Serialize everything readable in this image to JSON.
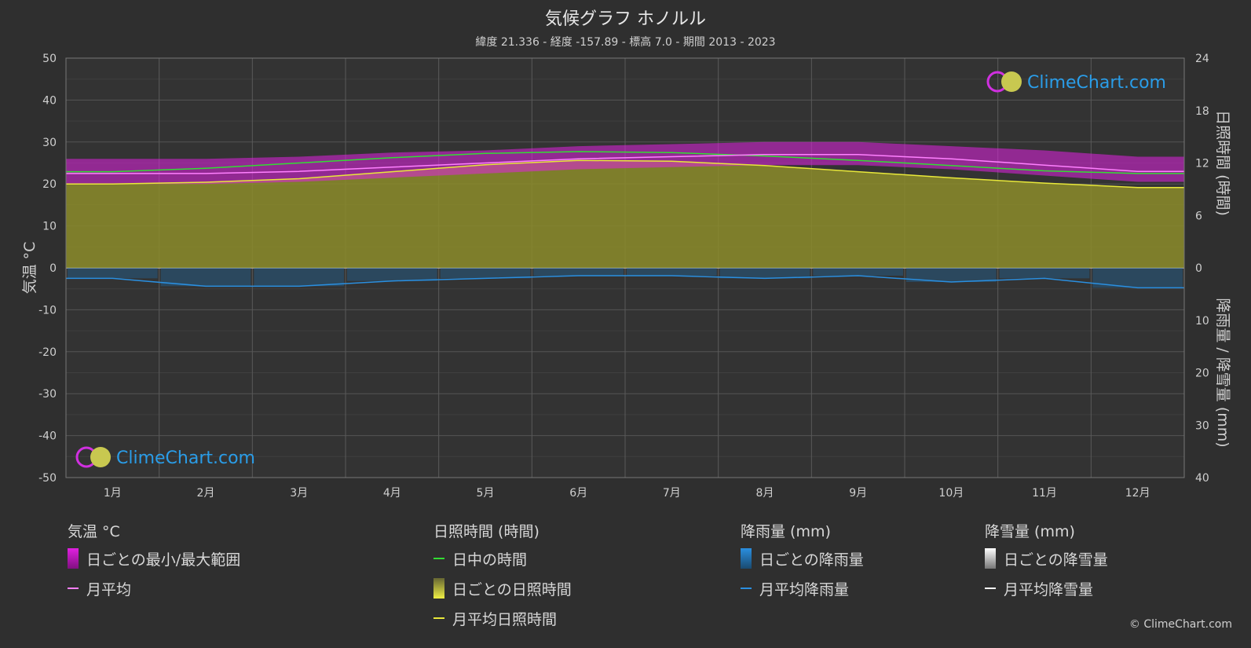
{
  "title": "気候グラフ ホノルル",
  "subtitle": "緯度 21.336 - 経度 -157.89 - 標高 7.0 - 期間 2013 - 2023",
  "watermark": "ClimeChart.com",
  "copyright": "© ClimeChart.com",
  "colors": {
    "background": "#2f2f2f",
    "grid": "#555555",
    "temp_range": "#e020e0",
    "temp_avg": "#ff80ff",
    "daylight": "#33dd33",
    "sunshine_fill": "#8c8c2a",
    "sunshine_avg": "#e8e83a",
    "rain": "#1e6fb0",
    "rain_avg": "#2a8fe0",
    "snow_avg": "#ffffff",
    "watermark_text": "#2a9de8"
  },
  "legend": {
    "temperature": {
      "heading": "気温 °C",
      "range": "日ごとの最小/最大範囲",
      "avg": "月平均"
    },
    "sunshine": {
      "heading": "日照時間 (時間)",
      "daylight": "日中の時間",
      "daily": "日ごとの日照時間",
      "avg": "月平均日照時間"
    },
    "rain": {
      "heading": "降雨量 (mm)",
      "daily": "日ごとの降雨量",
      "avg": "月平均降雨量"
    },
    "snow": {
      "heading": "降雪量 (mm)",
      "daily": "日ごとの降雪量",
      "avg": "月平均降雪量"
    }
  },
  "chart_data": {
    "type": "line",
    "categories": [
      "1月",
      "2月",
      "3月",
      "4月",
      "5月",
      "6月",
      "7月",
      "8月",
      "9月",
      "10月",
      "11月",
      "12月"
    ],
    "left_axis": {
      "label": "気温 °C",
      "range": [
        -50,
        50
      ],
      "ticks": [
        50,
        40,
        30,
        20,
        10,
        0,
        -10,
        -20,
        -30,
        -40,
        -50
      ]
    },
    "right_axis_top": {
      "label": "日照時間 (時間)",
      "range": [
        0,
        24
      ],
      "ticks": [
        24,
        18,
        12,
        6,
        0
      ]
    },
    "right_axis_bottom": {
      "label": "降雨量 / 降雪量 (mm)",
      "range": [
        0,
        40
      ],
      "ticks": [
        10,
        20,
        30,
        40
      ]
    },
    "series": [
      {
        "name": "日中の時間",
        "axis": "sunshine_hours",
        "values": [
          11.0,
          11.4,
          12.0,
          12.6,
          13.1,
          13.3,
          13.2,
          12.8,
          12.3,
          11.7,
          11.1,
          10.8
        ]
      },
      {
        "name": "月平均日照時間",
        "axis": "sunshine_hours",
        "values": [
          9.6,
          9.8,
          10.2,
          11.0,
          11.8,
          12.3,
          12.2,
          11.7,
          11.0,
          10.3,
          9.7,
          9.2
        ]
      },
      {
        "name": "月平均",
        "axis": "temperature_c",
        "values": [
          22.5,
          22.5,
          23.0,
          24.0,
          25.0,
          26.0,
          26.5,
          27.0,
          27.0,
          26.0,
          24.5,
          23.0
        ]
      },
      {
        "name": "日ごとの最小/最大範囲",
        "axis": "temperature_c",
        "min": [
          20.0,
          20.0,
          20.5,
          21.5,
          22.5,
          23.5,
          24.0,
          24.5,
          24.5,
          23.5,
          22.0,
          20.5
        ],
        "max": [
          26.0,
          26.0,
          26.5,
          27.5,
          28.0,
          29.0,
          29.5,
          30.0,
          30.0,
          29.0,
          28.0,
          26.5
        ]
      },
      {
        "name": "月平均降雨量",
        "axis": "precipitation_mm",
        "values": [
          2.0,
          3.5,
          3.5,
          2.5,
          2.0,
          1.5,
          1.5,
          2.0,
          1.5,
          2.7,
          2.0,
          3.8
        ]
      },
      {
        "name": "月平均降雪量",
        "axis": "precipitation_mm",
        "values": [
          0,
          0,
          0,
          0,
          0,
          0,
          0,
          0,
          0,
          0,
          0,
          0
        ]
      }
    ],
    "grid": true
  }
}
